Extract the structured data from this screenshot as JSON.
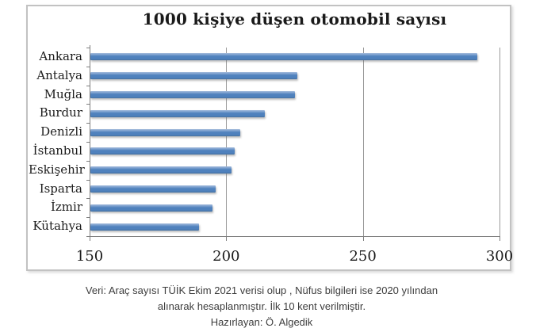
{
  "chart_data": {
    "type": "bar",
    "orientation": "horizontal",
    "title": "1000 kişiye düşen otomobil sayısı",
    "categories": [
      "Ankara",
      "Antalya",
      "Muğla",
      "Burdur",
      "Denizli",
      "İstanbul",
      "Eskişehir",
      "Isparta",
      "İzmir",
      "Kütahya"
    ],
    "values": [
      292,
      226,
      225,
      214,
      205,
      203,
      202,
      196,
      195,
      190
    ],
    "xlabel": "",
    "ylabel": "",
    "xlim": [
      150,
      300
    ],
    "xticks": [
      150,
      200,
      250,
      300
    ],
    "grid": "vertical gridlines at 200, 250, 300",
    "legend": "none",
    "bar_color": "#4f81bd",
    "gridline_color": "#9a9a9a",
    "axis_color": "#7f7f7f"
  },
  "footer": {
    "line1": "Veri: Araç sayısı TÜİK Ekim 2021 verisi olup , Nüfus bilgileri ise 2020 yılından",
    "line2": "alınarak hesaplanmıştır. İlk 10 kent verilmiştir.",
    "line3": "Hazırlayan: Ö. Algedik"
  }
}
